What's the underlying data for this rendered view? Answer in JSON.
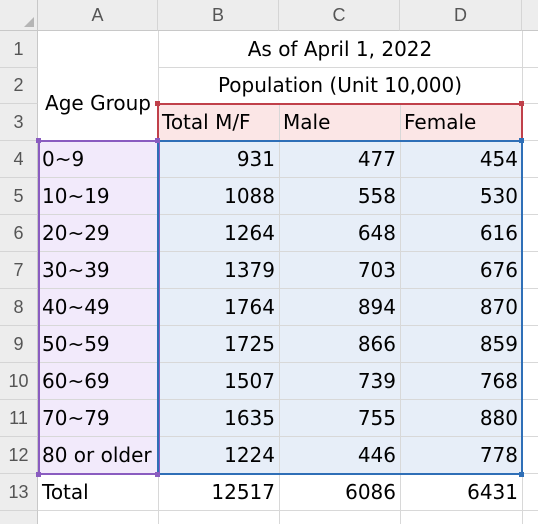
{
  "columns": [
    "A",
    "B",
    "C",
    "D"
  ],
  "rows": [
    "1",
    "2",
    "3",
    "4",
    "5",
    "6",
    "7",
    "8",
    "9",
    "10",
    "11",
    "12",
    "13"
  ],
  "header": {
    "date": "As of April 1, 2022",
    "population": "Population (Unit 10,000)",
    "age_group": "Age Group",
    "total": "Total M/F",
    "male": "Male",
    "female": "Female"
  },
  "data_rows": [
    {
      "age": "0~9",
      "total": "931",
      "male": "477",
      "female": "454"
    },
    {
      "age": "10~19",
      "total": "1088",
      "male": "558",
      "female": "530"
    },
    {
      "age": "20~29",
      "total": "1264",
      "male": "648",
      "female": "616"
    },
    {
      "age": "30~39",
      "total": "1379",
      "male": "703",
      "female": "676"
    },
    {
      "age": "40~49",
      "total": "1764",
      "male": "894",
      "female": "870"
    },
    {
      "age": "50~59",
      "total": "1725",
      "male": "866",
      "female": "859"
    },
    {
      "age": "60~69",
      "total": "1507",
      "male": "739",
      "female": "768"
    },
    {
      "age": "70~79",
      "total": "1635",
      "male": "755",
      "female": "880"
    },
    {
      "age": "80 or older",
      "total": "1224",
      "male": "446",
      "female": "778"
    }
  ],
  "totals": {
    "label": "Total",
    "total": "12517",
    "male": "6086",
    "female": "6431"
  },
  "colors": {
    "header_fill": "#fbe6e6",
    "header_border": "#c0404a",
    "age_fill": "#f2eafb",
    "age_border": "#8a5cc0",
    "data_fill": "#e7eef8",
    "data_border": "#2f6fb7"
  }
}
